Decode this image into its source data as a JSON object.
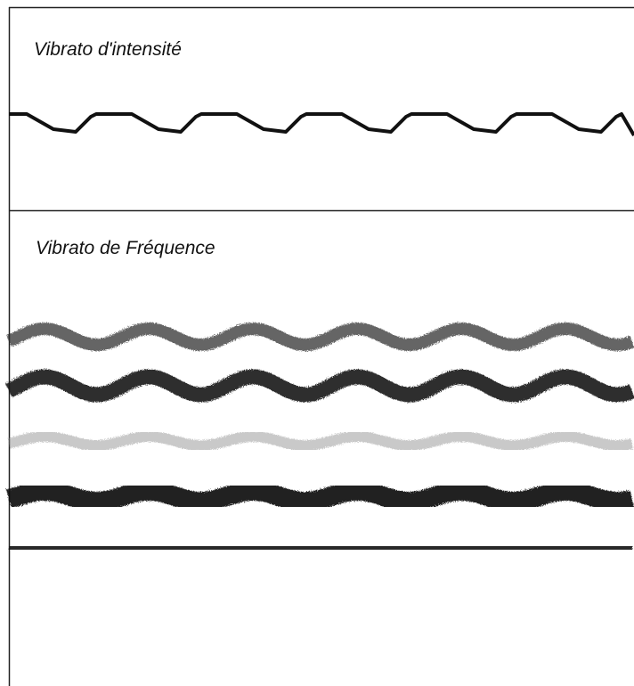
{
  "panels": [
    {
      "title": "Vibrato d'intensité"
    },
    {
      "title": "Vibrato de Fréquence"
    }
  ]
}
